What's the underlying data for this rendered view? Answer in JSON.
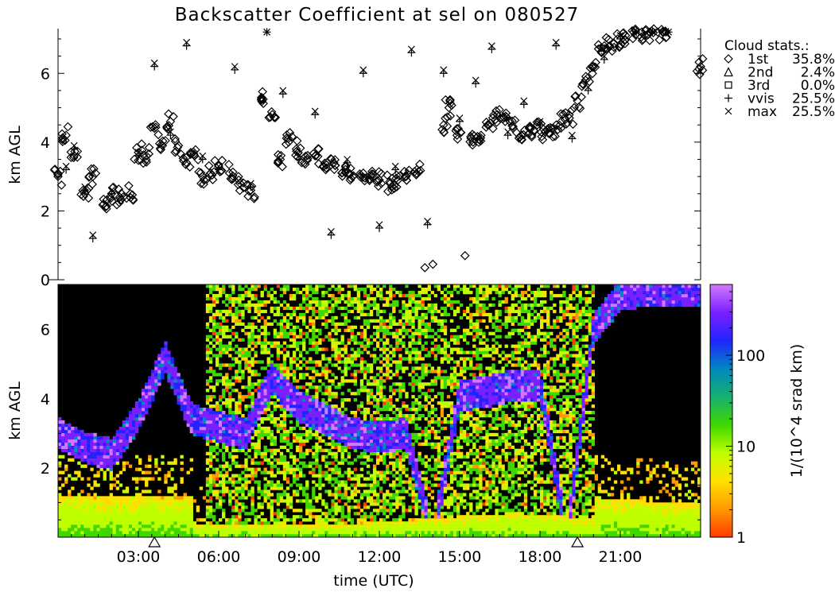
{
  "chart_data": [
    {
      "panel": "cloud-base-scatter",
      "type": "scatter",
      "title": "Backscatter Coefficient at sel on 080527",
      "xlabel": "",
      "ylabel": "km AGL",
      "xlim": [
        0,
        24
      ],
      "ylim": [
        0,
        7.3
      ],
      "yticks": [
        "0",
        "2",
        "4",
        "6"
      ],
      "legend_title": "Cloud stats.:",
      "legend_position": "top-right, outside plot",
      "legend": [
        {
          "marker": "diamond",
          "label": "1st",
          "value": "35.8%"
        },
        {
          "marker": "triangle",
          "label": "2nd",
          "value": "2.4%"
        },
        {
          "marker": "square",
          "label": "3rd",
          "value": "0.0%"
        },
        {
          "marker": "plus",
          "label": "vvis",
          "value": "25.5%"
        },
        {
          "marker": "x",
          "label": "max",
          "value": "25.5%"
        }
      ],
      "series": [
        {
          "name": "1st",
          "x": [
            0.0,
            0.3,
            0.6,
            1.0,
            1.3,
            1.7,
            2.0,
            2.3,
            2.7,
            3.0,
            3.3,
            3.6,
            3.9,
            4.2,
            4.5,
            4.8,
            5.1,
            5.4,
            5.7,
            6.0,
            6.4,
            6.8,
            7.2,
            7.6,
            8.0,
            8.3,
            8.6,
            8.9,
            9.2,
            9.6,
            10.0,
            10.3,
            10.6,
            11.0,
            11.4,
            11.7,
            12.0,
            12.4,
            12.7,
            13.0,
            13.4,
            13.7,
            14.0,
            14.4,
            14.6,
            14.9,
            15.2,
            15.5,
            15.8,
            16.1,
            16.4,
            16.7,
            17.0,
            17.3,
            17.6,
            17.9,
            18.2,
            18.5,
            18.8,
            19.1,
            19.4,
            19.7,
            20.0,
            20.3,
            20.6,
            20.9,
            21.2,
            21.5,
            21.8,
            22.1,
            22.4,
            22.7,
            24.0
          ],
          "y": [
            3.0,
            4.2,
            3.6,
            2.5,
            3.0,
            2.2,
            2.5,
            2.4,
            2.5,
            3.7,
            3.6,
            4.4,
            3.9,
            4.6,
            3.9,
            3.4,
            3.6,
            3.0,
            3.1,
            3.3,
            3.1,
            2.8,
            2.6,
            5.3,
            4.8,
            3.5,
            4.1,
            3.8,
            3.4,
            3.6,
            3.2,
            3.4,
            3.1,
            3.0,
            3.1,
            3.0,
            2.9,
            2.8,
            2.9,
            3.0,
            3.2,
            0.35,
            0.45,
            4.5,
            5.0,
            4.2,
            0.7,
            4.0,
            4.2,
            4.5,
            4.8,
            4.6,
            4.4,
            4.2,
            4.4,
            4.5,
            4.3,
            4.4,
            4.6,
            4.7,
            5.2,
            5.8,
            6.2,
            6.6,
            6.8,
            7.0,
            7.1,
            7.2,
            7.2,
            7.2,
            7.2,
            7.2,
            6.2
          ]
        },
        {
          "name": "vvis",
          "x": [
            0.3,
            0.6,
            1.0,
            1.3,
            2.0,
            3.0,
            3.6,
            4.2,
            4.8,
            5.4,
            6.0,
            6.6,
            7.2,
            7.8,
            8.4,
            9.0,
            9.6,
            10.2,
            10.8,
            11.4,
            12.0,
            12.6,
            13.2,
            13.8,
            14.4,
            15.0,
            15.6,
            16.2,
            16.8,
            17.4,
            18.0,
            18.6,
            19.2,
            19.8,
            20.4,
            21.0,
            21.6,
            22.2,
            22.8
          ],
          "y": [
            3.2,
            3.8,
            2.6,
            1.2,
            2.5,
            3.6,
            6.2,
            4.2,
            6.8,
            3.5,
            3.2,
            6.1,
            2.7,
            7.2,
            5.4,
            3.5,
            4.8,
            1.3,
            3.4,
            6.0,
            1.5,
            3.2,
            6.6,
            1.6,
            6.0,
            4.6,
            5.7,
            6.7,
            4.2,
            5.1,
            4.5,
            6.8,
            4.1,
            5.5,
            6.4,
            7.0,
            7.2,
            7.2,
            7.2
          ]
        },
        {
          "name": "max",
          "x": [
            0.3,
            0.6,
            1.0,
            1.3,
            2.0,
            3.0,
            3.6,
            4.2,
            4.8,
            5.4,
            6.0,
            6.6,
            7.2,
            7.8,
            8.4,
            9.0,
            9.6,
            10.2,
            10.8,
            11.4,
            12.0,
            12.6,
            13.2,
            13.8,
            14.4,
            15.0,
            15.6,
            16.2,
            16.8,
            17.4,
            18.0,
            18.6,
            19.2,
            19.8,
            20.4,
            21.0,
            21.6,
            22.2,
            22.8
          ],
          "y": [
            3.3,
            3.9,
            2.7,
            1.3,
            2.6,
            3.7,
            6.3,
            4.3,
            6.9,
            3.6,
            3.3,
            6.2,
            2.8,
            7.2,
            5.5,
            3.6,
            4.9,
            1.4,
            3.5,
            6.1,
            1.6,
            3.3,
            6.7,
            1.7,
            6.1,
            4.7,
            5.8,
            6.8,
            4.3,
            5.2,
            4.6,
            6.9,
            4.2,
            5.6,
            6.5,
            7.1,
            7.2,
            7.2,
            7.2
          ]
        }
      ]
    },
    {
      "panel": "backscatter-image",
      "type": "heatmap",
      "xlabel": "time (UTC)",
      "ylabel": "km AGL",
      "xlim": [
        0,
        24
      ],
      "ylim": [
        0,
        7.3
      ],
      "xticks": [
        "03:00",
        "06:00",
        "09:00",
        "12:00",
        "15:00",
        "18:00",
        "21:00"
      ],
      "yticks": [
        "2",
        "4",
        "6"
      ],
      "colorbar_label": "1/(10^4 srad km)",
      "colorbar_scale": "log",
      "colorbar_ticks": [
        "1",
        "10",
        "100"
      ],
      "colorbar_range": [
        1,
        600
      ],
      "colormap": [
        "#ff3b00",
        "#ff9a00",
        "#ffe000",
        "#bfff00",
        "#3fd800",
        "#16b070",
        "#0088c0",
        "#2024ff",
        "#7a20ff",
        "#d27aff"
      ],
      "background": "#000000",
      "markers": [
        {
          "type": "triangle",
          "x": 3.6
        },
        {
          "type": "triangle",
          "x": 19.4
        }
      ],
      "cloud_base_height_km": {
        "x": [
          0.0,
          1.0,
          2.0,
          3.0,
          4.0,
          5.0,
          6.0,
          7.0,
          8.0,
          9.0,
          10.0,
          11.0,
          12.0,
          13.0,
          14.0,
          15.0,
          16.0,
          17.0,
          18.0,
          19.0,
          20.0,
          21.0,
          22.0
        ],
        "y": [
          3.0,
          2.6,
          2.4,
          3.5,
          5.2,
          3.4,
          3.2,
          3.0,
          4.6,
          3.8,
          3.4,
          3.0,
          2.9,
          3.0,
          0.0,
          4.1,
          4.2,
          4.4,
          4.4,
          0.0,
          6.0,
          7.0,
          7.1
        ]
      }
    }
  ]
}
